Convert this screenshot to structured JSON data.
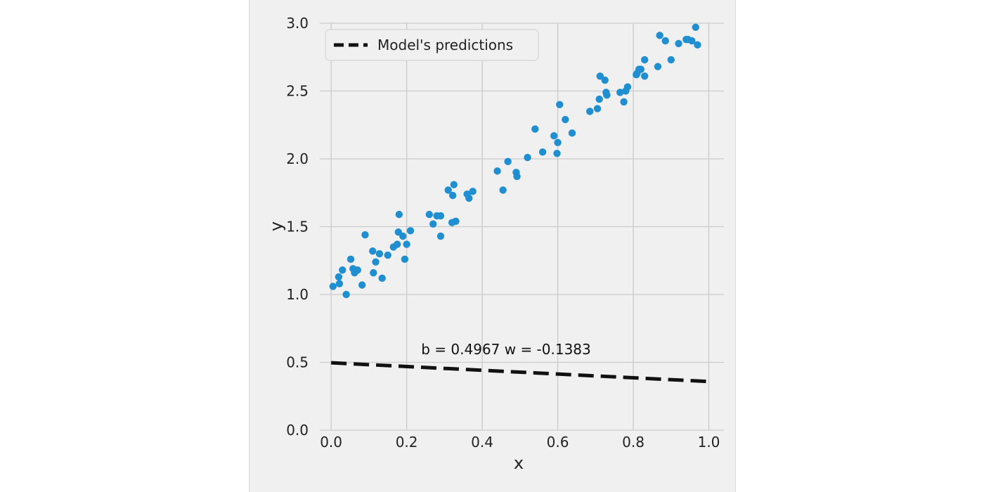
{
  "chart_data": {
    "type": "scatter",
    "title": "",
    "xlabel": "x",
    "ylabel": "y",
    "xlim": [
      -0.03,
      1.04
    ],
    "ylim": [
      0.0,
      3.0
    ],
    "xticks": [
      0.0,
      0.2,
      0.4,
      0.6,
      0.8,
      1.0
    ],
    "xtick_labels": [
      "0.0",
      "0.2",
      "0.4",
      "0.6",
      "0.8",
      "1.0"
    ],
    "yticks": [
      0.0,
      0.5,
      1.0,
      1.5,
      2.0,
      2.5,
      3.0
    ],
    "ytick_labels": [
      "0.0",
      "0.5",
      "1.0",
      "1.5",
      "2.0",
      "2.5",
      "3.0"
    ],
    "grid": true,
    "legend_position": "top-left",
    "colors": {
      "points": "#1f8fd1",
      "line": "#111111",
      "background": "#f0f0f0",
      "grid": "#cbcbcb"
    },
    "annotation": "b = 0.4967 w = -0.1383",
    "series": [
      {
        "kind": "scatter",
        "points": [
          [
            0.005,
            1.06
          ],
          [
            0.02,
            1.13
          ],
          [
            0.022,
            1.08
          ],
          [
            0.03,
            1.18
          ],
          [
            0.04,
            1.0
          ],
          [
            0.052,
            1.26
          ],
          [
            0.058,
            1.19
          ],
          [
            0.062,
            1.16
          ],
          [
            0.07,
            1.18
          ],
          [
            0.082,
            1.07
          ],
          [
            0.09,
            1.44
          ],
          [
            0.11,
            1.32
          ],
          [
            0.112,
            1.16
          ],
          [
            0.118,
            1.24
          ],
          [
            0.128,
            1.3
          ],
          [
            0.135,
            1.12
          ],
          [
            0.15,
            1.29
          ],
          [
            0.165,
            1.35
          ],
          [
            0.175,
            1.37
          ],
          [
            0.178,
            1.46
          ],
          [
            0.18,
            1.59
          ],
          [
            0.19,
            1.43
          ],
          [
            0.195,
            1.26
          ],
          [
            0.2,
            1.37
          ],
          [
            0.21,
            1.47
          ],
          [
            0.26,
            1.59
          ],
          [
            0.27,
            1.52
          ],
          [
            0.28,
            1.58
          ],
          [
            0.29,
            1.43
          ],
          [
            0.29,
            1.58
          ],
          [
            0.31,
            1.77
          ],
          [
            0.32,
            1.53
          ],
          [
            0.322,
            1.73
          ],
          [
            0.325,
            1.81
          ],
          [
            0.33,
            1.54
          ],
          [
            0.36,
            1.74
          ],
          [
            0.365,
            1.71
          ],
          [
            0.375,
            1.76
          ],
          [
            0.44,
            1.91
          ],
          [
            0.455,
            1.77
          ],
          [
            0.468,
            1.98
          ],
          [
            0.49,
            1.9
          ],
          [
            0.492,
            1.87
          ],
          [
            0.52,
            2.01
          ],
          [
            0.54,
            2.22
          ],
          [
            0.56,
            2.05
          ],
          [
            0.59,
            2.17
          ],
          [
            0.598,
            2.04
          ],
          [
            0.6,
            2.12
          ],
          [
            0.605,
            2.4
          ],
          [
            0.62,
            2.29
          ],
          [
            0.638,
            2.19
          ],
          [
            0.685,
            2.35
          ],
          [
            0.705,
            2.37
          ],
          [
            0.71,
            2.44
          ],
          [
            0.712,
            2.61
          ],
          [
            0.725,
            2.58
          ],
          [
            0.728,
            2.49
          ],
          [
            0.73,
            2.47
          ],
          [
            0.765,
            2.49
          ],
          [
            0.775,
            2.42
          ],
          [
            0.78,
            2.5
          ],
          [
            0.785,
            2.53
          ],
          [
            0.808,
            2.62
          ],
          [
            0.81,
            2.63
          ],
          [
            0.815,
            2.66
          ],
          [
            0.82,
            2.66
          ],
          [
            0.83,
            2.73
          ],
          [
            0.83,
            2.61
          ],
          [
            0.865,
            2.68
          ],
          [
            0.87,
            2.91
          ],
          [
            0.885,
            2.87
          ],
          [
            0.9,
            2.73
          ],
          [
            0.92,
            2.85
          ],
          [
            0.94,
            2.88
          ],
          [
            0.945,
            2.88
          ],
          [
            0.955,
            2.87
          ],
          [
            0.965,
            2.97
          ],
          [
            0.97,
            2.84
          ]
        ]
      },
      {
        "kind": "line",
        "name": "Model's predictions",
        "style": "dashed",
        "x": [
          0.0,
          1.0
        ],
        "y": [
          0.4967,
          0.3584
        ]
      }
    ]
  }
}
